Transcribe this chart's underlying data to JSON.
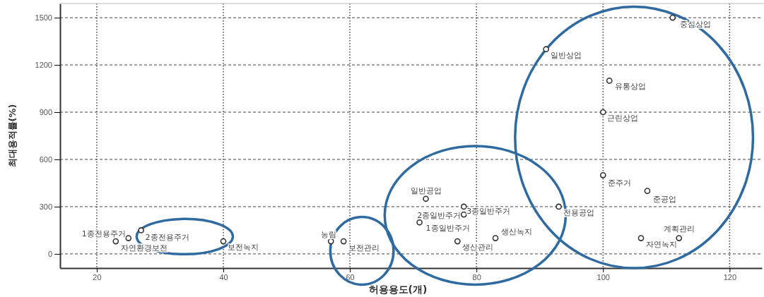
{
  "chart_data": {
    "type": "scatter",
    "xlabel": "허용용도(개)",
    "ylabel": "최대용적률(%)",
    "x": [
      23,
      25,
      27,
      40,
      57,
      59,
      72,
      78,
      78,
      71,
      77,
      83,
      111,
      91,
      101,
      100,
      100,
      107,
      93,
      112,
      106
    ],
    "values": [
      80,
      100,
      150,
      80,
      80,
      80,
      350,
      250,
      300,
      200,
      80,
      100,
      1500,
      1300,
      1100,
      900,
      500,
      400,
      300,
      100,
      100
    ],
    "color": "#333333",
    "marker": "circle",
    "xlim": [
      14.2,
      125.1
    ],
    "xticks": [
      20,
      40,
      60,
      80,
      100,
      120
    ],
    "ylim": [
      -90,
      1590
    ],
    "yticks": [
      0,
      300,
      600,
      900,
      1200,
      1500
    ],
    "grid": true,
    "annotations": [
      {
        "text": "자연환경보전",
        "x": 23,
        "y": 80
      },
      {
        "text": "1종전용주거",
        "x": 25,
        "y": 100
      },
      {
        "text": "2종전용주거",
        "x": 27,
        "y": 150
      },
      {
        "text": "보전녹지",
        "x": 40,
        "y": 80
      },
      {
        "text": "농림",
        "x": 57,
        "y": 80
      },
      {
        "text": "보전관리",
        "x": 59,
        "y": 80
      },
      {
        "text": "일반공업",
        "x": 72,
        "y": 350
      },
      {
        "text": "2종일반주거",
        "x": 78,
        "y": 250
      },
      {
        "text": "3종일반주거",
        "x": 78,
        "y": 300
      },
      {
        "text": "1종일반주거",
        "x": 71,
        "y": 200
      },
      {
        "text": "생산관리",
        "x": 77,
        "y": 80
      },
      {
        "text": "생산녹지",
        "x": 83,
        "y": 100
      },
      {
        "text": "중심상업",
        "x": 111,
        "y": 1500
      },
      {
        "text": "일반상업",
        "x": 91,
        "y": 1300
      },
      {
        "text": "유통상업",
        "x": 101,
        "y": 1100
      },
      {
        "text": "근린상업",
        "x": 100,
        "y": 900
      },
      {
        "text": "준주거",
        "x": 100,
        "y": 500
      },
      {
        "text": "준공업",
        "x": 107,
        "y": 400
      },
      {
        "text": "전용공업",
        "x": 93,
        "y": 300
      },
      {
        "text": "계획관리",
        "x": 112,
        "y": 100
      },
      {
        "text": "자연녹지",
        "x": 106,
        "y": 100
      }
    ]
  }
}
